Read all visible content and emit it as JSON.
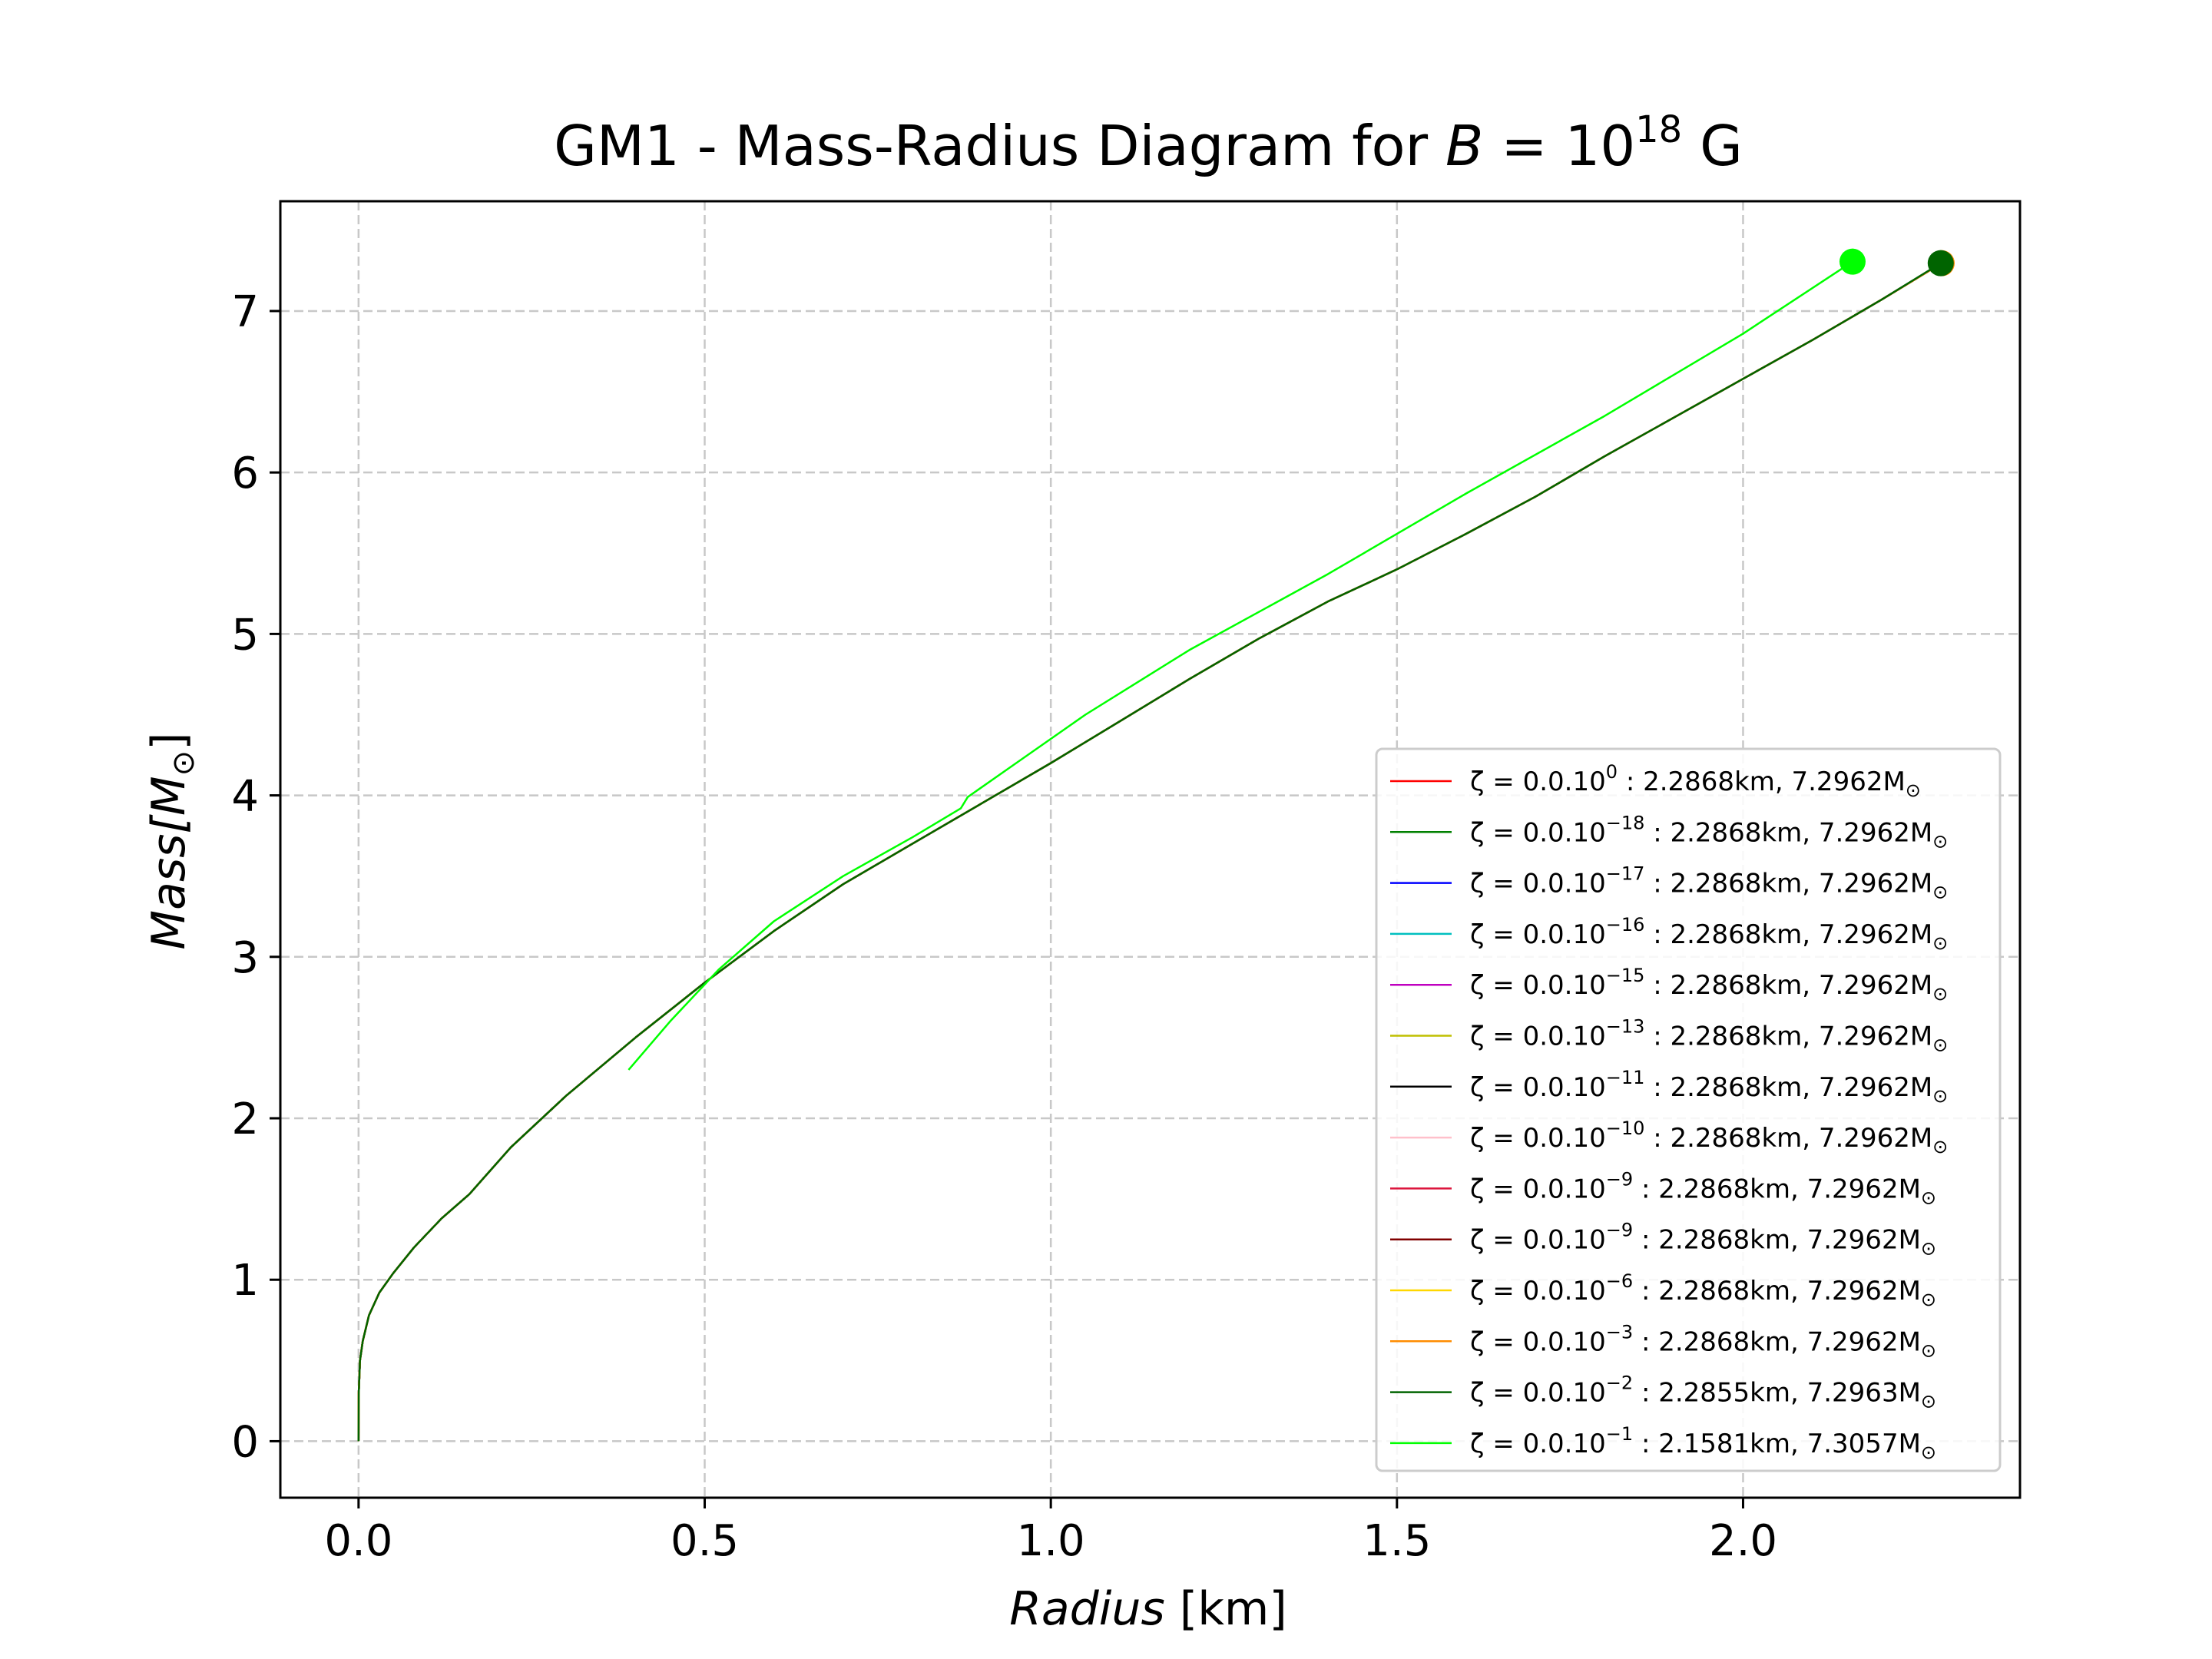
{
  "chart_data": {
    "type": "line",
    "title": {
      "prefix": "GM1 - Mass-Radius Diagram for ",
      "var": "B",
      "eq": " = 10",
      "exp": "18",
      "suffix": " G"
    },
    "xlabel": {
      "main": "Radius ",
      "unit": "[km]"
    },
    "ylabel": {
      "main": "Mass",
      "unit": "[M",
      "sub": "⊙",
      "close": "]"
    },
    "xlim": [
      -0.113,
      2.4
    ],
    "ylim": [
      -0.35,
      7.68
    ],
    "xticks": [
      "0.0",
      "0.5",
      "1.0",
      "1.5",
      "2.0"
    ],
    "xtick_values": [
      0,
      0.5,
      1.0,
      1.5,
      2.0
    ],
    "yticks": [
      "0",
      "1",
      "2",
      "3",
      "4",
      "5",
      "6",
      "7"
    ],
    "ytick_values": [
      0,
      1,
      2,
      3,
      4,
      5,
      6,
      7
    ],
    "grid": true,
    "legend_position": "lower-right",
    "series": [
      {
        "name": "ζ = 0.0.10^0 : 2.2868km, 7.2962M⊙",
        "label": {
          "pre": "ζ = 0.0.10",
          "exp": "0",
          "post": " : 2.2868km, 7.2962M",
          "sub": "⊙"
        },
        "color": "#ff0000",
        "x": [
          0,
          0.0003,
          0.002,
          0.006,
          0.015,
          0.03,
          0.05,
          0.08,
          0.12,
          0.16,
          0.22,
          0.3,
          0.4,
          0.5,
          0.6,
          0.7,
          0.8,
          0.9,
          1.0,
          1.1,
          1.2,
          1.3,
          1.4,
          1.5,
          1.6,
          1.7,
          1.8,
          1.9,
          2.0,
          2.1,
          2.2,
          2.2868
        ],
        "y": [
          0,
          0.3,
          0.5,
          0.62,
          0.78,
          0.92,
          1.04,
          1.2,
          1.38,
          1.53,
          1.82,
          2.14,
          2.5,
          2.84,
          3.16,
          3.45,
          3.7,
          3.95,
          4.2,
          4.46,
          4.72,
          4.97,
          5.2,
          5.4,
          5.62,
          5.85,
          6.1,
          6.34,
          6.58,
          6.82,
          7.07,
          7.2962
        ],
        "marker": false
      },
      {
        "name": "ζ = 0.0.10^-18 : 2.2868km, 7.2962M⊙",
        "label": {
          "pre": "ζ = 0.0.10",
          "exp": "−18",
          "post": " : 2.2868km, 7.2962M",
          "sub": "⊙"
        },
        "color": "#008000",
        "x": [
          0,
          0.0003,
          0.002,
          0.006,
          0.015,
          0.03,
          0.05,
          0.08,
          0.12,
          0.16,
          0.22,
          0.3,
          0.4,
          0.5,
          0.6,
          0.7,
          0.8,
          0.9,
          1.0,
          1.1,
          1.2,
          1.3,
          1.4,
          1.5,
          1.6,
          1.7,
          1.8,
          1.9,
          2.0,
          2.1,
          2.2,
          2.2868
        ],
        "y": [
          0,
          0.3,
          0.5,
          0.62,
          0.78,
          0.92,
          1.04,
          1.2,
          1.38,
          1.53,
          1.82,
          2.14,
          2.5,
          2.84,
          3.16,
          3.45,
          3.7,
          3.95,
          4.2,
          4.46,
          4.72,
          4.97,
          5.2,
          5.4,
          5.62,
          5.85,
          6.1,
          6.34,
          6.58,
          6.82,
          7.07,
          7.2962
        ],
        "marker": false
      },
      {
        "name": "ζ = 0.0.10^-17 : 2.2868km, 7.2962M⊙",
        "label": {
          "pre": "ζ = 0.0.10",
          "exp": "−17",
          "post": " : 2.2868km, 7.2962M",
          "sub": "⊙"
        },
        "color": "#0000ff",
        "x": [
          0,
          0.0003,
          0.002,
          0.006,
          0.015,
          0.03,
          0.05,
          0.08,
          0.12,
          0.16,
          0.22,
          0.3,
          0.4,
          0.5,
          0.6,
          0.7,
          0.8,
          0.9,
          1.0,
          1.1,
          1.2,
          1.3,
          1.4,
          1.5,
          1.6,
          1.7,
          1.8,
          1.9,
          2.0,
          2.1,
          2.2,
          2.2868
        ],
        "y": [
          0,
          0.3,
          0.5,
          0.62,
          0.78,
          0.92,
          1.04,
          1.2,
          1.38,
          1.53,
          1.82,
          2.14,
          2.5,
          2.84,
          3.16,
          3.45,
          3.7,
          3.95,
          4.2,
          4.46,
          4.72,
          4.97,
          5.2,
          5.4,
          5.62,
          5.85,
          6.1,
          6.34,
          6.58,
          6.82,
          7.07,
          7.2962
        ],
        "marker": false
      },
      {
        "name": "ζ = 0.0.10^-16 : 2.2868km, 7.2962M⊙",
        "label": {
          "pre": "ζ = 0.0.10",
          "exp": "−16",
          "post": " : 2.2868km, 7.2962M",
          "sub": "⊙"
        },
        "color": "#00bfbf",
        "x": [
          0,
          0.0003,
          0.002,
          0.006,
          0.015,
          0.03,
          0.05,
          0.08,
          0.12,
          0.16,
          0.22,
          0.3,
          0.4,
          0.5,
          0.6,
          0.7,
          0.8,
          0.9,
          1.0,
          1.1,
          1.2,
          1.3,
          1.4,
          1.5,
          1.6,
          1.7,
          1.8,
          1.9,
          2.0,
          2.1,
          2.2,
          2.2868
        ],
        "y": [
          0,
          0.3,
          0.5,
          0.62,
          0.78,
          0.92,
          1.04,
          1.2,
          1.38,
          1.53,
          1.82,
          2.14,
          2.5,
          2.84,
          3.16,
          3.45,
          3.7,
          3.95,
          4.2,
          4.46,
          4.72,
          4.97,
          5.2,
          5.4,
          5.62,
          5.85,
          6.1,
          6.34,
          6.58,
          6.82,
          7.07,
          7.2962
        ],
        "marker": false
      },
      {
        "name": "ζ = 0.0.10^-15 : 2.2868km, 7.2962M⊙",
        "label": {
          "pre": "ζ = 0.0.10",
          "exp": "−15",
          "post": " : 2.2868km, 7.2962M",
          "sub": "⊙"
        },
        "color": "#bf00bf",
        "x": [
          0,
          0.0003,
          0.002,
          0.006,
          0.015,
          0.03,
          0.05,
          0.08,
          0.12,
          0.16,
          0.22,
          0.3,
          0.4,
          0.5,
          0.6,
          0.7,
          0.8,
          0.9,
          1.0,
          1.1,
          1.2,
          1.3,
          1.4,
          1.5,
          1.6,
          1.7,
          1.8,
          1.9,
          2.0,
          2.1,
          2.2,
          2.2868
        ],
        "y": [
          0,
          0.3,
          0.5,
          0.62,
          0.78,
          0.92,
          1.04,
          1.2,
          1.38,
          1.53,
          1.82,
          2.14,
          2.5,
          2.84,
          3.16,
          3.45,
          3.7,
          3.95,
          4.2,
          4.46,
          4.72,
          4.97,
          5.2,
          5.4,
          5.62,
          5.85,
          6.1,
          6.34,
          6.58,
          6.82,
          7.07,
          7.2962
        ],
        "marker": false
      },
      {
        "name": "ζ = 0.0.10^-13 : 2.2868km, 7.2962M⊙",
        "label": {
          "pre": "ζ = 0.0.10",
          "exp": "−13",
          "post": " : 2.2868km, 7.2962M",
          "sub": "⊙"
        },
        "color": "#bfbf00",
        "x": [
          0,
          0.0003,
          0.002,
          0.006,
          0.015,
          0.03,
          0.05,
          0.08,
          0.12,
          0.16,
          0.22,
          0.3,
          0.4,
          0.5,
          0.6,
          0.7,
          0.8,
          0.9,
          1.0,
          1.1,
          1.2,
          1.3,
          1.4,
          1.5,
          1.6,
          1.7,
          1.8,
          1.9,
          2.0,
          2.1,
          2.2,
          2.2868
        ],
        "y": [
          0,
          0.3,
          0.5,
          0.62,
          0.78,
          0.92,
          1.04,
          1.2,
          1.38,
          1.53,
          1.82,
          2.14,
          2.5,
          2.84,
          3.16,
          3.45,
          3.7,
          3.95,
          4.2,
          4.46,
          4.72,
          4.97,
          5.2,
          5.4,
          5.62,
          5.85,
          6.1,
          6.34,
          6.58,
          6.82,
          7.07,
          7.2962
        ],
        "marker": false
      },
      {
        "name": "ζ = 0.0.10^-11 : 2.2868km, 7.2962M⊙",
        "label": {
          "pre": "ζ = 0.0.10",
          "exp": "−11",
          "post": " : 2.2868km, 7.2962M",
          "sub": "⊙"
        },
        "color": "#000000",
        "x": [
          0,
          0.0003,
          0.002,
          0.006,
          0.015,
          0.03,
          0.05,
          0.08,
          0.12,
          0.16,
          0.22,
          0.3,
          0.4,
          0.5,
          0.6,
          0.7,
          0.8,
          0.9,
          1.0,
          1.1,
          1.2,
          1.3,
          1.4,
          1.5,
          1.6,
          1.7,
          1.8,
          1.9,
          2.0,
          2.1,
          2.2,
          2.2868
        ],
        "y": [
          0,
          0.3,
          0.5,
          0.62,
          0.78,
          0.92,
          1.04,
          1.2,
          1.38,
          1.53,
          1.82,
          2.14,
          2.5,
          2.84,
          3.16,
          3.45,
          3.7,
          3.95,
          4.2,
          4.46,
          4.72,
          4.97,
          5.2,
          5.4,
          5.62,
          5.85,
          6.1,
          6.34,
          6.58,
          6.82,
          7.07,
          7.2962
        ],
        "marker": false
      },
      {
        "name": "ζ = 0.0.10^-10 : 2.2868km, 7.2962M⊙",
        "label": {
          "pre": "ζ = 0.0.10",
          "exp": "−10",
          "post": " : 2.2868km, 7.2962M",
          "sub": "⊙"
        },
        "color": "#ffc0cb",
        "x": [
          0,
          0.0003,
          0.002,
          0.006,
          0.015,
          0.03,
          0.05,
          0.08,
          0.12,
          0.16,
          0.22,
          0.3,
          0.4,
          0.5,
          0.6,
          0.7,
          0.8,
          0.9,
          1.0,
          1.1,
          1.2,
          1.3,
          1.4,
          1.5,
          1.6,
          1.7,
          1.8,
          1.9,
          2.0,
          2.1,
          2.2,
          2.2868
        ],
        "y": [
          0,
          0.3,
          0.5,
          0.62,
          0.78,
          0.92,
          1.04,
          1.2,
          1.38,
          1.53,
          1.82,
          2.14,
          2.5,
          2.84,
          3.16,
          3.45,
          3.7,
          3.95,
          4.2,
          4.46,
          4.72,
          4.97,
          5.2,
          5.4,
          5.62,
          5.85,
          6.1,
          6.34,
          6.58,
          6.82,
          7.07,
          7.2962
        ],
        "marker": false
      },
      {
        "name": "ζ = 0.0.10^-9 : 2.2868km, 7.2962M⊙",
        "label": {
          "pre": "ζ = 0.0.10",
          "exp": "−9",
          "post": " : 2.2868km, 7.2962M",
          "sub": "⊙"
        },
        "color": "#dc143c",
        "x": [
          0,
          0.0003,
          0.002,
          0.006,
          0.015,
          0.03,
          0.05,
          0.08,
          0.12,
          0.16,
          0.22,
          0.3,
          0.4,
          0.5,
          0.6,
          0.7,
          0.8,
          0.9,
          1.0,
          1.1,
          1.2,
          1.3,
          1.4,
          1.5,
          1.6,
          1.7,
          1.8,
          1.9,
          2.0,
          2.1,
          2.2,
          2.2868
        ],
        "y": [
          0,
          0.3,
          0.5,
          0.62,
          0.78,
          0.92,
          1.04,
          1.2,
          1.38,
          1.53,
          1.82,
          2.14,
          2.5,
          2.84,
          3.16,
          3.45,
          3.7,
          3.95,
          4.2,
          4.46,
          4.72,
          4.97,
          5.2,
          5.4,
          5.62,
          5.85,
          6.1,
          6.34,
          6.58,
          6.82,
          7.07,
          7.2962
        ],
        "marker": false
      },
      {
        "name": "ζ = 0.0.10^-9 : 2.2868km, 7.2962M⊙",
        "label": {
          "pre": "ζ = 0.0.10",
          "exp": "−9",
          "post": " : 2.2868km, 7.2962M",
          "sub": "⊙"
        },
        "color": "#800000",
        "x": [
          0,
          0.0003,
          0.002,
          0.006,
          0.015,
          0.03,
          0.05,
          0.08,
          0.12,
          0.16,
          0.22,
          0.3,
          0.4,
          0.5,
          0.6,
          0.7,
          0.8,
          0.9,
          1.0,
          1.1,
          1.2,
          1.3,
          1.4,
          1.5,
          1.6,
          1.7,
          1.8,
          1.9,
          2.0,
          2.1,
          2.2,
          2.2868
        ],
        "y": [
          0,
          0.3,
          0.5,
          0.62,
          0.78,
          0.92,
          1.04,
          1.2,
          1.38,
          1.53,
          1.82,
          2.14,
          2.5,
          2.84,
          3.16,
          3.45,
          3.7,
          3.95,
          4.2,
          4.46,
          4.72,
          4.97,
          5.2,
          5.4,
          5.62,
          5.85,
          6.1,
          6.34,
          6.58,
          6.82,
          7.07,
          7.2962
        ],
        "marker": false
      },
      {
        "name": "ζ = 0.0.10^-6 : 2.2868km, 7.2962M⊙",
        "label": {
          "pre": "ζ = 0.0.10",
          "exp": "−6",
          "post": " : 2.2868km, 7.2962M",
          "sub": "⊙"
        },
        "color": "#ffd700",
        "x": [
          0,
          0.0003,
          0.002,
          0.006,
          0.015,
          0.03,
          0.05,
          0.08,
          0.12,
          0.16,
          0.22,
          0.3,
          0.4,
          0.5,
          0.6,
          0.7,
          0.8,
          0.9,
          1.0,
          1.1,
          1.2,
          1.3,
          1.4,
          1.5,
          1.6,
          1.7,
          1.8,
          1.9,
          2.0,
          2.1,
          2.2,
          2.2868
        ],
        "y": [
          0,
          0.3,
          0.5,
          0.62,
          0.78,
          0.92,
          1.04,
          1.2,
          1.38,
          1.53,
          1.82,
          2.14,
          2.5,
          2.84,
          3.16,
          3.45,
          3.7,
          3.95,
          4.2,
          4.46,
          4.72,
          4.97,
          5.2,
          5.4,
          5.62,
          5.85,
          6.1,
          6.34,
          6.58,
          6.82,
          7.07,
          7.2962
        ],
        "marker": false
      },
      {
        "name": "ζ = 0.0.10^-3 : 2.2868km, 7.2962M⊙",
        "label": {
          "pre": "ζ = 0.0.10",
          "exp": "−3",
          "post": " : 2.2868km, 7.2962M",
          "sub": "⊙"
        },
        "color": "#ff8c00",
        "x": [
          0,
          0.0003,
          0.002,
          0.006,
          0.015,
          0.03,
          0.05,
          0.08,
          0.12,
          0.16,
          0.22,
          0.3,
          0.4,
          0.5,
          0.6,
          0.7,
          0.8,
          0.9,
          1.0,
          1.1,
          1.2,
          1.3,
          1.4,
          1.5,
          1.6,
          1.7,
          1.8,
          1.9,
          2.0,
          2.1,
          2.2,
          2.2868
        ],
        "y": [
          0,
          0.3,
          0.5,
          0.62,
          0.78,
          0.92,
          1.04,
          1.2,
          1.38,
          1.53,
          1.82,
          2.14,
          2.5,
          2.84,
          3.16,
          3.45,
          3.7,
          3.95,
          4.2,
          4.46,
          4.72,
          4.97,
          5.2,
          5.4,
          5.62,
          5.85,
          6.1,
          6.34,
          6.58,
          6.82,
          7.07,
          7.2962
        ],
        "marker": true
      },
      {
        "name": "ζ = 0.0.10^-2 : 2.2855km, 7.2963M⊙",
        "label": {
          "pre": "ζ = 0.0.10",
          "exp": "−2",
          "post": " : 2.2855km, 7.2963M",
          "sub": "⊙"
        },
        "color": "#006400",
        "x": [
          0,
          0.0003,
          0.002,
          0.006,
          0.015,
          0.03,
          0.05,
          0.08,
          0.12,
          0.16,
          0.22,
          0.3,
          0.4,
          0.5,
          0.6,
          0.7,
          0.8,
          0.9,
          1.0,
          1.1,
          1.2,
          1.3,
          1.4,
          1.5,
          1.6,
          1.7,
          1.8,
          1.9,
          2.0,
          2.1,
          2.2,
          2.2855
        ],
        "y": [
          0,
          0.3,
          0.5,
          0.62,
          0.78,
          0.92,
          1.04,
          1.2,
          1.38,
          1.53,
          1.82,
          2.14,
          2.5,
          2.84,
          3.16,
          3.45,
          3.7,
          3.95,
          4.2,
          4.46,
          4.72,
          4.97,
          5.2,
          5.4,
          5.62,
          5.85,
          6.1,
          6.34,
          6.58,
          6.82,
          7.07,
          7.2963
        ],
        "marker": true
      },
      {
        "name": "ζ = 0.0.10^-1 : 2.1581km, 7.3057M⊙",
        "label": {
          "pre": "ζ = 0.0.10",
          "exp": "−1",
          "post": " : 2.1581km, 7.3057M",
          "sub": "⊙"
        },
        "color": "#00ff00",
        "x": [
          0.39,
          0.45,
          0.52,
          0.6,
          0.7,
          0.8,
          0.87,
          0.88,
          0.95,
          1.05,
          1.2,
          1.4,
          1.6,
          1.8,
          2.0,
          2.1581
        ],
        "y": [
          2.3,
          2.6,
          2.92,
          3.22,
          3.5,
          3.74,
          3.92,
          3.99,
          4.2,
          4.5,
          4.9,
          5.37,
          5.87,
          6.35,
          6.86,
          7.3057
        ],
        "marker": true
      }
    ]
  }
}
